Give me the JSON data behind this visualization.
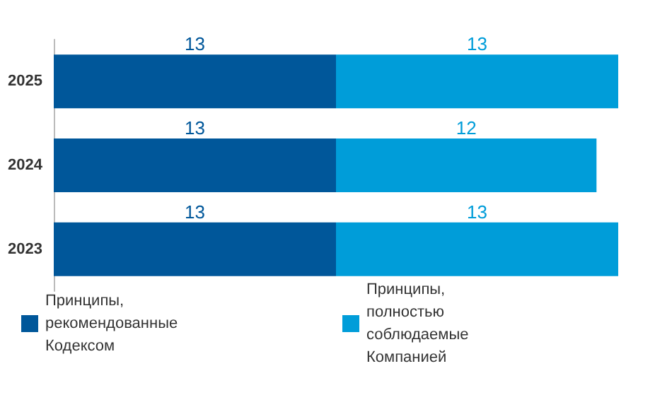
{
  "chart_data": {
    "type": "bar",
    "orientation": "horizontal",
    "stacked": true,
    "data_labels": true,
    "legend": "bottom",
    "grid": false,
    "categories": [
      "2025",
      "2024",
      "2023"
    ],
    "series": [
      {
        "name": "Принципы, рекомендованные Кодексом",
        "color": "#00579a",
        "values": [
          13,
          13,
          13
        ]
      },
      {
        "name": "Принципы, полностью соблюдаемые Компанией",
        "color": "#009dd9",
        "values": [
          13,
          12,
          13
        ]
      }
    ]
  }
}
